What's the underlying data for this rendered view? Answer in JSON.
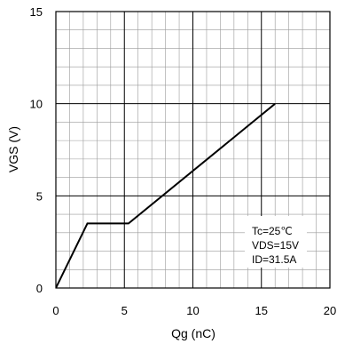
{
  "chart_data": {
    "type": "line",
    "title": "",
    "xlabel": "Qg (nC)",
    "ylabel": "VGS (V)",
    "xlim": [
      0,
      20
    ],
    "ylim": [
      0,
      15
    ],
    "x_ticks": [
      "0",
      "5",
      "10",
      "15",
      "20"
    ],
    "y_ticks": [
      "0",
      "5",
      "10",
      "15"
    ],
    "grid": "on",
    "series": [
      {
        "points": [
          {
            "x": 0,
            "y": 0
          },
          {
            "x": 2.3,
            "y": 3.5
          },
          {
            "x": 5.3,
            "y": 3.5
          },
          {
            "x": 16,
            "y": 10
          }
        ]
      }
    ],
    "annotations": [
      "Tc=25℃",
      "VDS=15V",
      "ID=31.5A"
    ]
  }
}
